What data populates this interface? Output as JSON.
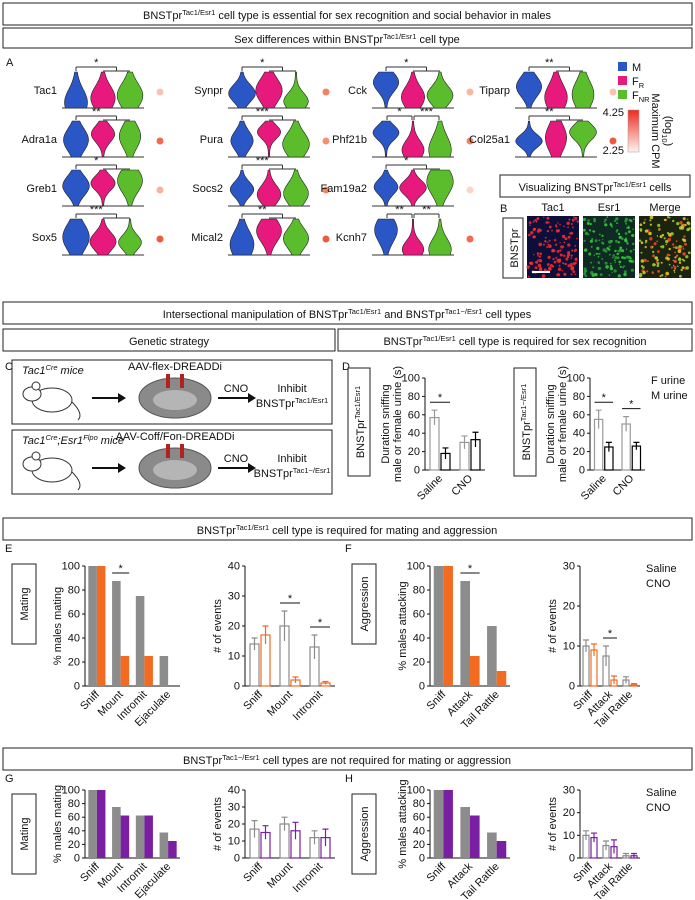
{
  "header": {
    "title": [
      "BNSTpr",
      "Tac1/Esr1",
      " cell type is essential for sex recognition and social behavior in males"
    ]
  },
  "panel_a": {
    "title": [
      "Sex differences within BNSTpr",
      "Tac1/Esr1",
      " cell type"
    ],
    "label": "A",
    "groups": [
      {
        "name": [
          "M"
        ],
        "color": "#2a56c6"
      },
      {
        "name": [
          "F",
          "R"
        ],
        "color": "#e8197d"
      },
      {
        "name": [
          "F",
          "NR"
        ],
        "color": "#5bbd2b"
      }
    ],
    "colorbar": {
      "title": "Maximum CPM",
      "unit": [
        "(log",
        "10",
        ")"
      ],
      "max": 4.25,
      "min": 2.25
    },
    "genes": [
      {
        "name": "Tac1",
        "sig": [
          "*"
        ],
        "dot": "#f9c3b0"
      },
      {
        "name": "Adra1a",
        "sig": [
          "**"
        ],
        "dot": "#f26a4f"
      },
      {
        "name": "Greb1",
        "sig": [
          "*"
        ],
        "dot": "#f7b49c"
      },
      {
        "name": "Sox5",
        "sig": [
          "***"
        ],
        "dot": "#f05a3c"
      },
      {
        "name": "Synpr",
        "sig": [
          "*"
        ],
        "dot": "#f4835e"
      },
      {
        "name": "Pura",
        "sig": [
          "***"
        ],
        "dot": "#f59070"
      },
      {
        "name": "Socs2",
        "sig": [
          "***"
        ],
        "dot": "#f4835e"
      },
      {
        "name": "Mical2",
        "sig": [
          "**"
        ],
        "dot": "#f05a3c"
      },
      {
        "name": "Cck",
        "sig": [
          "*"
        ],
        "dot": "#f8b8a0"
      },
      {
        "name": "Phf21b",
        "sig": [
          "*",
          "***"
        ],
        "dot": "#f4835e"
      },
      {
        "name": "Fam19a2",
        "sig": [
          "*"
        ],
        "dot": "#fbd5c6"
      },
      {
        "name": "Kcnh7",
        "sig": [
          "**",
          "**"
        ],
        "dot": "#f26a4f"
      },
      {
        "name": "Tiparp",
        "sig": [
          "**"
        ],
        "dot": "#f9c3b0"
      },
      {
        "name": "Col25a1",
        "sig": [
          "**"
        ],
        "dot": "#f05a3c"
      }
    ]
  },
  "panel_b": {
    "title": [
      "Visualizing BNSTpr",
      "Tac1/Esr1",
      " cells"
    ],
    "label": "B",
    "region": "BNSTpr",
    "channels": [
      {
        "name": "Tac1",
        "color": "#e8192c"
      },
      {
        "name": "Esr1",
        "color": "#1e9e3a"
      },
      {
        "name": "Merge",
        "color": "#000000"
      }
    ]
  },
  "section_2": {
    "title": [
      "Intersectional manipulation of BNSTpr",
      "Tac1/Esr1",
      " and BNSTpr",
      "Tac1−/Esr1",
      " cell types"
    ]
  },
  "panel_c": {
    "title": "Genetic strategy",
    "label": "C",
    "rows": [
      {
        "mouse": [
          "Tac1",
          "Cre",
          " mice"
        ],
        "virus": "AAV-flex-DREADDi",
        "drug": "CNO",
        "color": "#f26b21",
        "effect": "Inhibit",
        "target": [
          "BNSTpr",
          "Tac1/Esr1"
        ]
      },
      {
        "mouse": [
          "Tac1",
          "Cre",
          ";Esr1",
          "Flpo",
          " mice"
        ],
        "virus": "AAV-Coff/Fon-DREADDi",
        "drug": "CNO",
        "color": "#7b2593",
        "effect": "Inhibit",
        "target": [
          "BNSTpr",
          "Tac1−/Esr1"
        ]
      }
    ]
  },
  "panel_d": {
    "title": [
      "BNSTpr",
      "Tac1/Esr1",
      " cell type is required for sex recognition"
    ],
    "label": "D",
    "side_labels": [
      {
        "text": [
          "BNSTpr",
          "Tac1/Esr1"
        ],
        "color": "#f26b21"
      },
      {
        "text": [
          "BNSTpr",
          "Tac1−/Esr1"
        ],
        "color": "#7b2593"
      }
    ]
  },
  "section_3": {
    "title": [
      "BNSTpr",
      "Tac1/Esr1",
      " cell type is required for mating and aggression"
    ],
    "labels": [
      "E",
      "F"
    ],
    "behaviors": [
      "Mating",
      "Aggression"
    ]
  },
  "section_4": {
    "title": [
      "BNSTpr",
      "Tac1−/Esr1",
      " cell types are not required for mating or aggression"
    ],
    "labels": [
      "G",
      "H"
    ],
    "behaviors": [
      "Mating",
      "Aggression"
    ]
  },
  "chart_data": [
    {
      "type": "bar",
      "ylabel": [
        "Duration sniffing",
        "male or female urine (s)"
      ],
      "categories": [
        "Saline",
        "CNO"
      ],
      "series": [
        {
          "color": "#999999",
          "values": [
            57,
            30
          ],
          "errors": [
            8,
            7
          ]
        },
        {
          "color": "#000000",
          "values": [
            18,
            33
          ],
          "errors": [
            6,
            8
          ]
        }
      ],
      "ylim": [
        0,
        100
      ],
      "yticks": [
        0,
        20,
        40,
        60,
        80,
        100
      ],
      "significance": [
        "*",
        null
      ]
    },
    {
      "type": "bar",
      "ylabel": [
        "Duration sniffing",
        "male or female urine (s)"
      ],
      "categories": [
        "Saline",
        "CNO"
      ],
      "series": [
        {
          "name": "F urine",
          "color": "#999999",
          "values": [
            55,
            50
          ],
          "errors": [
            10,
            8
          ]
        },
        {
          "name": "M urine",
          "color": "#000000",
          "values": [
            25,
            26
          ],
          "errors": [
            5,
            4
          ]
        }
      ],
      "ylim": [
        0,
        100
      ],
      "yticks": [
        0,
        20,
        40,
        60,
        80,
        100
      ],
      "significance": [
        "*",
        "*"
      ]
    },
    {
      "type": "bar",
      "ylabel": [
        "% males mating"
      ],
      "categories": [
        "Sniff",
        "Mount",
        "Intromit",
        "Ejaculate"
      ],
      "series": [
        {
          "color": "#8c8c8c",
          "values": [
            100,
            87.5,
            75,
            25
          ]
        },
        {
          "color": "#f26b21",
          "values": [
            100,
            25,
            25,
            0
          ]
        }
      ],
      "ylim": [
        0,
        100
      ],
      "yticks": [
        0,
        20,
        40,
        60,
        80,
        100
      ],
      "significance": [
        null,
        "*",
        null,
        null
      ]
    },
    {
      "type": "bar",
      "ylabel": [
        "# of events"
      ],
      "categories": [
        "Sniff",
        "Mount",
        "Intromit"
      ],
      "series": [
        {
          "color": "#8c8c8c",
          "values": [
            14,
            20,
            13
          ],
          "errors": [
            2,
            5,
            4
          ]
        },
        {
          "color": "#f26b21",
          "values": [
            17,
            2,
            1
          ],
          "errors": [
            3,
            1,
            0.5
          ]
        }
      ],
      "ylim": [
        0,
        40
      ],
      "yticks": [
        0,
        10,
        20,
        30,
        40
      ],
      "significance": [
        null,
        "*",
        "*"
      ]
    },
    {
      "type": "bar",
      "ylabel": [
        "% males attacking"
      ],
      "categories": [
        "Sniff",
        "Attack",
        "Tail Rattle"
      ],
      "series": [
        {
          "color": "#8c8c8c",
          "values": [
            100,
            87.5,
            50
          ]
        },
        {
          "color": "#f26b21",
          "values": [
            100,
            25,
            12.5
          ]
        }
      ],
      "ylim": [
        0,
        100
      ],
      "yticks": [
        0,
        20,
        40,
        60,
        80,
        100
      ],
      "significance": [
        null,
        "*",
        null
      ]
    },
    {
      "type": "bar",
      "ylabel": [
        "# of events"
      ],
      "categories": [
        "Sniff",
        "Attack",
        "Tail Rattle"
      ],
      "series": [
        {
          "name": "Saline",
          "color": "#8c8c8c",
          "values": [
            10,
            7.5,
            1.5
          ],
          "errors": [
            1.5,
            2.5,
            0.8
          ]
        },
        {
          "name": "CNO",
          "color": "#f26b21",
          "values": [
            9,
            1.5,
            0.3
          ],
          "errors": [
            1.5,
            1,
            0.3
          ]
        }
      ],
      "ylim": [
        0,
        30
      ],
      "yticks": [
        0,
        10,
        20,
        30
      ],
      "significance": [
        null,
        "*",
        null
      ]
    },
    {
      "type": "bar",
      "ylabel": [
        "% males mating"
      ],
      "categories": [
        "Sniff",
        "Mount",
        "Intromit",
        "Ejaculate"
      ],
      "series": [
        {
          "color": "#8c8c8c",
          "values": [
            100,
            75,
            62.5,
            37.5
          ]
        },
        {
          "color": "#7b1fa2",
          "values": [
            100,
            62.5,
            62.5,
            25
          ]
        }
      ],
      "ylim": [
        0,
        100
      ],
      "yticks": [
        0,
        20,
        40,
        60,
        80,
        100
      ]
    },
    {
      "type": "bar",
      "ylabel": [
        "# of events"
      ],
      "categories": [
        "Sniff",
        "Mount",
        "Intromit"
      ],
      "series": [
        {
          "color": "#8c8c8c",
          "values": [
            17,
            20,
            12
          ],
          "errors": [
            5,
            4,
            4
          ]
        },
        {
          "color": "#7b1fa2",
          "values": [
            15,
            16,
            12
          ],
          "errors": [
            4,
            5,
            5
          ]
        }
      ],
      "ylim": [
        0,
        40
      ],
      "yticks": [
        0,
        10,
        20,
        30,
        40
      ]
    },
    {
      "type": "bar",
      "ylabel": [
        "% males attacking"
      ],
      "categories": [
        "Sniff",
        "Attack",
        "Tail Rattle"
      ],
      "series": [
        {
          "color": "#8c8c8c",
          "values": [
            100,
            75,
            37.5
          ]
        },
        {
          "color": "#7b1fa2",
          "values": [
            100,
            62.5,
            25
          ]
        }
      ],
      "ylim": [
        0,
        100
      ],
      "yticks": [
        0,
        20,
        40,
        60,
        80,
        100
      ]
    },
    {
      "type": "bar",
      "ylabel": [
        "# of events"
      ],
      "categories": [
        "Sniff",
        "Attack",
        "Tail Rattle"
      ],
      "series": [
        {
          "name": "Saline",
          "color": "#8c8c8c",
          "values": [
            10,
            5.5,
            1
          ],
          "errors": [
            2,
            2,
            1
          ]
        },
        {
          "name": "CNO",
          "color": "#7b1fa2",
          "values": [
            9,
            5,
            1
          ],
          "errors": [
            2,
            3,
            1
          ]
        }
      ],
      "ylim": [
        0,
        30
      ],
      "yticks": [
        0,
        10,
        20,
        30
      ]
    }
  ]
}
